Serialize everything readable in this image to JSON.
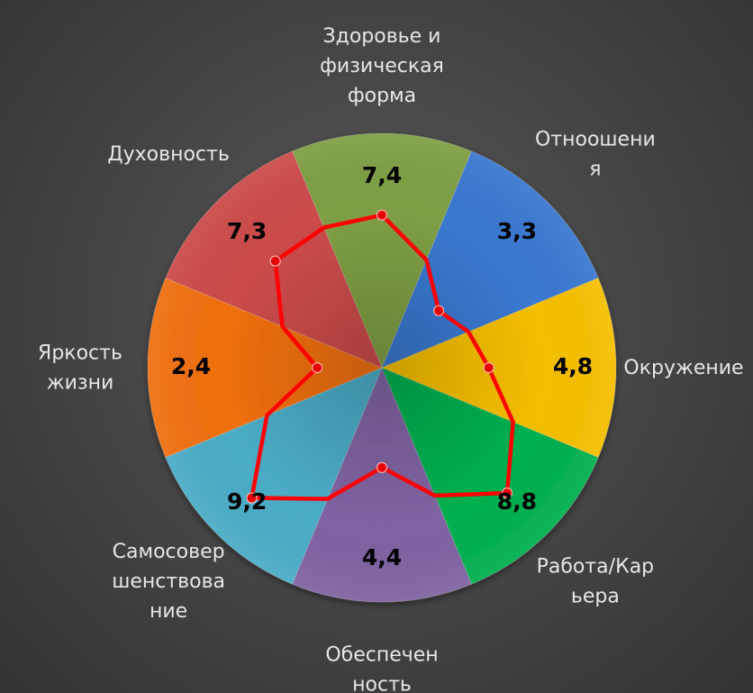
{
  "chart_data": {
    "type": "pie",
    "chart_subtype": "wheel-of-life",
    "categories": [
      "Здоровье и физическая форма",
      "Отноошения",
      "Окружение",
      "Работа/Карьера",
      "Обеспеченность",
      "Самосовершенствование",
      "Яркость жизни",
      "Духовность"
    ],
    "category_label_lines": [
      [
        "Здоровье и",
        "физическая",
        "форма"
      ],
      [
        "Отноошени",
        "я"
      ],
      [
        "Окружение"
      ],
      [
        "Работа/Кар",
        "ьера"
      ],
      [
        "Обеспечен",
        "ность"
      ],
      [
        "Самосовер",
        "шенствова",
        "ние"
      ],
      [
        "Яркость",
        "жизни"
      ],
      [
        "Духовность"
      ]
    ],
    "values": [
      7.4,
      3.3,
      4.8,
      8.8,
      4.4,
      9.2,
      2.4,
      7.3
    ],
    "value_labels": [
      "7,4",
      "3,3",
      "4,8",
      "8,8",
      "4,4",
      "9,2",
      "2,4",
      "7,3"
    ],
    "slice_colors": [
      "#7f9f45",
      "#3a78d0",
      "#f5bf00",
      "#00b04f",
      "#8064a2",
      "#4bacc6",
      "#f07010",
      "#cc4b4b"
    ],
    "overlay_line_color": "#ff0000",
    "scale_max": 10,
    "legend": "none",
    "grid": false
  }
}
